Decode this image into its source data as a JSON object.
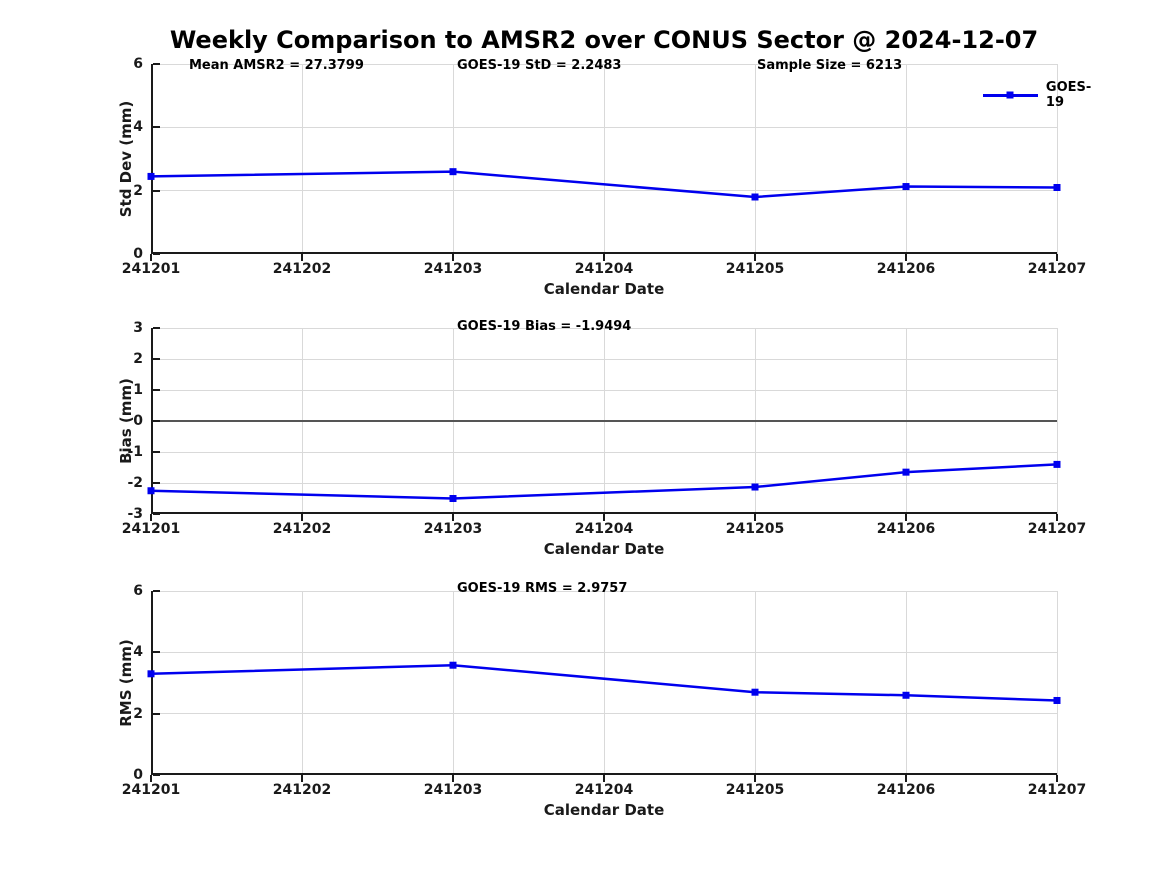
{
  "title": "Weekly Comparison to AMSR2 over CONUS Sector @ 2024-12-07",
  "legend": {
    "label": "GOES-19"
  },
  "x_axis": {
    "label": "Calendar Date",
    "ticks": [
      "241201",
      "241202",
      "241203",
      "241204",
      "241205",
      "241206",
      "241207"
    ]
  },
  "colors": {
    "line": "#0000EE",
    "grid": "#D9D9D9",
    "axis": "#1A1A1A",
    "zero": "#555555",
    "text": "#1A1A1A"
  },
  "stats": {
    "mean_amsr2": 27.3799,
    "goes19_std": 2.2483,
    "sample_size": 6213,
    "goes19_bias": -1.9494,
    "goes19_rms": 2.9757
  },
  "chart_data": [
    {
      "type": "line",
      "ylabel": "Std Dev (mm)",
      "xlabel": "Calendar Date",
      "ylim": [
        0,
        6
      ],
      "yticks": [
        0,
        2,
        4,
        6
      ],
      "grid": true,
      "annotations": [
        "Mean AMSR2 = 27.3799",
        "GOES-19 StD = 2.2483",
        "Sample Size = 6213"
      ],
      "x": [
        "241201",
        "241203",
        "241205",
        "241206",
        "241207"
      ],
      "series": [
        {
          "name": "GOES-19",
          "values": [
            2.45,
            2.6,
            1.8,
            2.13,
            2.1
          ]
        }
      ],
      "legend_position": "top-right"
    },
    {
      "type": "line",
      "ylabel": "Bias (mm)",
      "xlabel": "Calendar Date",
      "ylim": [
        -3,
        3
      ],
      "yticks": [
        -3,
        -2,
        -1,
        0,
        1,
        2,
        3
      ],
      "grid": true,
      "zero_line": true,
      "annotations": [
        "GOES-19 Bias  = -1.9494"
      ],
      "x": [
        "241201",
        "241203",
        "241205",
        "241206",
        "241207"
      ],
      "series": [
        {
          "name": "GOES-19",
          "values": [
            -2.25,
            -2.5,
            -2.13,
            -1.65,
            -1.4
          ]
        }
      ]
    },
    {
      "type": "line",
      "ylabel": "RMS (mm)",
      "xlabel": "Calendar Date",
      "ylim": [
        0,
        6
      ],
      "yticks": [
        0,
        2,
        4,
        6
      ],
      "grid": true,
      "annotations": [
        "GOES-19 RMS = 2.9757"
      ],
      "x": [
        "241201",
        "241203",
        "241205",
        "241206",
        "241207"
      ],
      "series": [
        {
          "name": "GOES-19",
          "values": [
            3.3,
            3.58,
            2.7,
            2.6,
            2.43
          ]
        }
      ]
    }
  ]
}
